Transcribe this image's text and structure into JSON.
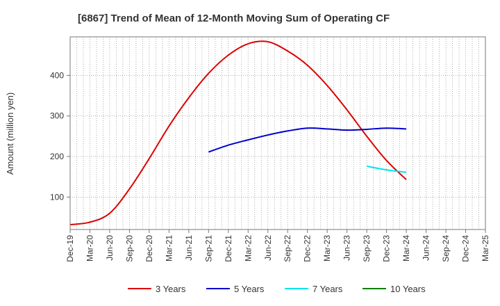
{
  "chart_data": {
    "type": "line",
    "title": "[6867]  Trend of Mean of 12-Month Moving Sum of Operating CF",
    "xlabel": "",
    "ylabel": "Amount (million yen)",
    "ylim": [
      20,
      495
    ],
    "y_ticks": [
      100,
      200,
      300,
      400
    ],
    "x_ticks": [
      "Dec-19",
      "Mar-20",
      "Jun-20",
      "Sep-20",
      "Dec-20",
      "Mar-21",
      "Jun-21",
      "Sep-21",
      "Dec-21",
      "Mar-22",
      "Jun-22",
      "Sep-22",
      "Dec-22",
      "Mar-23",
      "Jun-23",
      "Sep-23",
      "Dec-23",
      "Mar-24",
      "Jun-24",
      "Sep-24",
      "Dec-24",
      "Mar-25"
    ],
    "grid": true,
    "legend_position": "bottom",
    "series": [
      {
        "name": "3 Years",
        "color": "#dd0000",
        "x": [
          "Dec-19",
          "Mar-20",
          "Jun-20",
          "Sep-20",
          "Dec-20",
          "Mar-21",
          "Jun-21",
          "Sep-21",
          "Dec-21",
          "Mar-22",
          "Jun-22",
          "Sep-22",
          "Dec-22",
          "Mar-23",
          "Jun-23",
          "Sep-23",
          "Dec-23",
          "Mar-24"
        ],
        "values": [
          32,
          38,
          60,
          120,
          195,
          275,
          345,
          405,
          450,
          478,
          483,
          460,
          425,
          375,
          315,
          250,
          190,
          143
        ]
      },
      {
        "name": "5 Years",
        "color": "#0000cc",
        "x": [
          "Sep-21",
          "Dec-21",
          "Mar-22",
          "Jun-22",
          "Sep-22",
          "Dec-22",
          "Mar-23",
          "Jun-23",
          "Sep-23",
          "Dec-23",
          "Mar-24"
        ],
        "values": [
          211,
          228,
          241,
          253,
          263,
          270,
          268,
          265,
          267,
          270,
          268
        ]
      },
      {
        "name": "7 Years",
        "color": "#00e5ee",
        "x": [
          "Sep-23",
          "Dec-23",
          "Mar-24"
        ],
        "values": [
          176,
          167,
          161
        ]
      },
      {
        "name": "10 Years",
        "color": "#008000",
        "x": [],
        "values": []
      }
    ]
  }
}
